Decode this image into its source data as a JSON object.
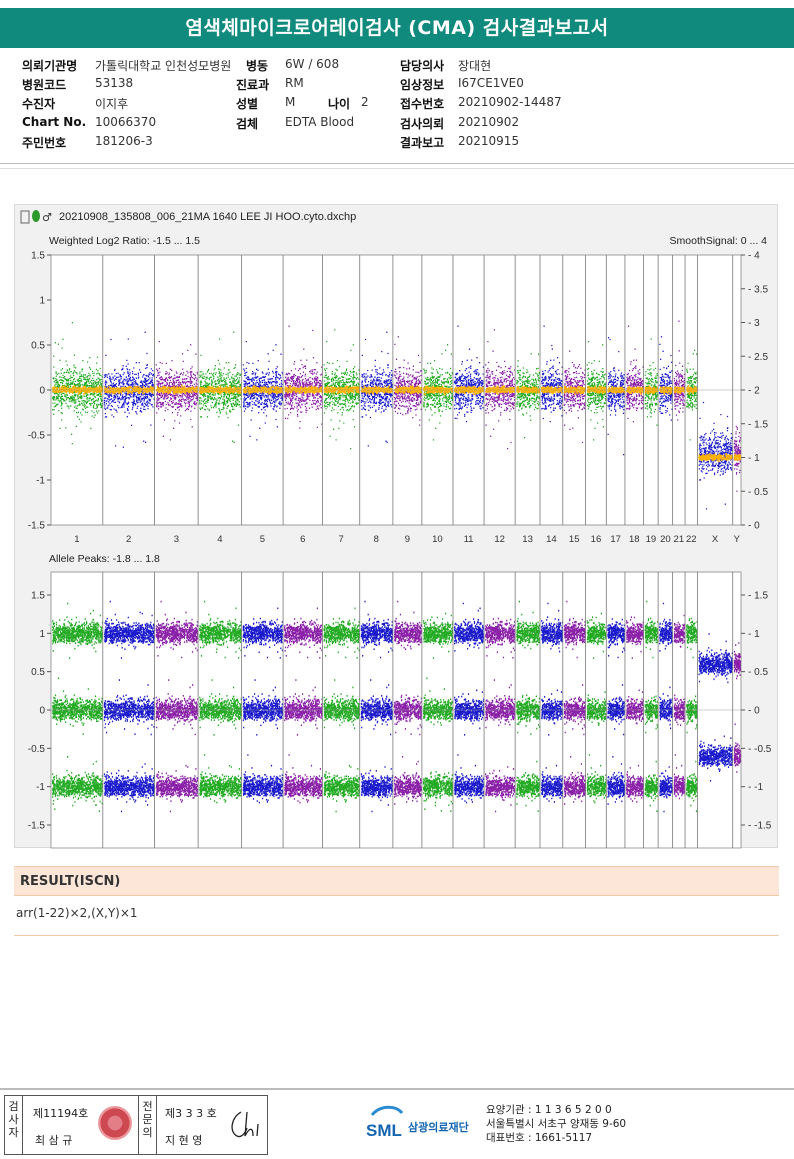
{
  "title": "염색체마이크로어레이검사 (CMA) 검사결과보고서",
  "info": [
    {
      "label": "의뢰기관명",
      "value": "가톨릭대학교 인천성모병원"
    },
    {
      "label": "병동",
      "value": "6W / 608"
    },
    {
      "label": "담당의사",
      "value": "장대현"
    },
    {
      "label": "병원코드",
      "value": "53138"
    },
    {
      "label": "진료과",
      "value": "RM"
    },
    {
      "label": "임상정보",
      "value": "I67CE1VE0"
    },
    {
      "label": "수진자",
      "value": "이지후"
    },
    {
      "label": "성별",
      "value": "M"
    },
    {
      "label": "나이",
      "value": "2"
    },
    {
      "label": "접수번호",
      "value": "20210902-14487"
    },
    {
      "label": "Chart No.",
      "value": "10066370"
    },
    {
      "label": "검체",
      "value": "EDTA Blood"
    },
    {
      "label": "검사의뢰",
      "value": "20210902"
    },
    {
      "label": "주민번호",
      "value": "181206-3"
    },
    {
      "label": "결과보고",
      "value": "20210915"
    }
  ],
  "chart_data": {
    "type": "scatter",
    "file_label": "20210908_135808_006_21MA 1640 LEE JI HOO.cyto.dxchp",
    "chromosomes": [
      "1",
      "2",
      "3",
      "4",
      "5",
      "6",
      "7",
      "8",
      "9",
      "10",
      "11",
      "12",
      "13",
      "14",
      "15",
      "16",
      "17",
      "18",
      "19",
      "20",
      "21",
      "22",
      "X",
      "Y"
    ],
    "top_panel": {
      "title": "Weighted Log2 Ratio: -1.5 ... 1.5",
      "right_title": "SmoothSignal: 0 ... 4",
      "ylim": [
        -1.5,
        1.5
      ],
      "yticks": [
        "1.5",
        "1",
        "0.5",
        "0",
        "-0.5",
        "-1",
        "-1.5"
      ],
      "right_yticks": [
        "4",
        "3.5",
        "3",
        "2.5",
        "2",
        "1.5",
        "1",
        "0.5",
        "0"
      ],
      "smooth_signal_autosomes": 2,
      "smooth_signal_X": 1,
      "log2_ratio_autosomes": 0,
      "log2_ratio_X": -0.7
    },
    "bottom_panel": {
      "title": "Allele Peaks: -1.8 ... 1.8",
      "ylim": [
        -1.8,
        1.8
      ],
      "yticks": [
        "1.5",
        "1",
        "0.5",
        "0",
        "-0.5",
        "-1",
        "-1.5"
      ],
      "right_yticks": [
        "1.5",
        "1",
        "0.5",
        "0",
        "-0.5",
        "-1",
        "-1.5"
      ],
      "autosome_peaks": [
        1,
        0,
        -1
      ],
      "X_peaks": [
        0.6,
        -0.6
      ]
    },
    "colors": {
      "green": "#22aa22",
      "blue": "#1a1acc",
      "purple": "#8a1fa8",
      "yellow": "#ffb300"
    }
  },
  "result": {
    "heading": "RESULT(ISCN)",
    "text": "arr(1-22)×2,(X,Y)×1"
  },
  "footer": {
    "col1_label": "검사자",
    "col1_line1": "제11194호",
    "col1_line2": "최 삼 규",
    "col2_label": "전문의",
    "col2_line1": "제3 3 3 호",
    "col2_line2": "지 현 영",
    "logo_text": "SML",
    "logo_name": "삼광의료재단",
    "addr1": "요양기관 : 1 1 3 6 5 2 0 0",
    "addr2": "서울특별시 서초구 양재동 9-60",
    "addr3": "대표번호 : 1661-5117"
  }
}
